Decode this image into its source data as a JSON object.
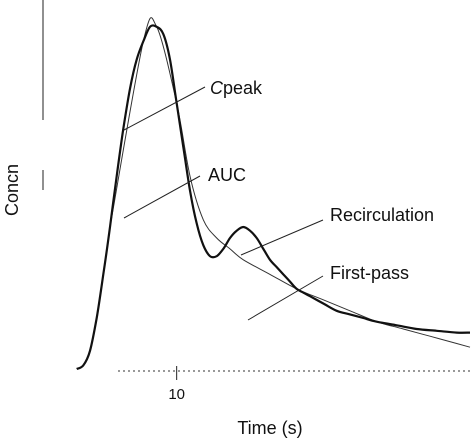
{
  "chart_data": {
    "type": "line",
    "title": "",
    "xlabel": "Time (s)",
    "ylabel": "Concn",
    "x_ticks": [
      10
    ],
    "x_tick_labels": [
      "10"
    ],
    "xlim": [
      -6,
      54
    ],
    "ylim": [
      0,
      100
    ],
    "grid": false,
    "series": [
      {
        "key": "total",
        "x": [
          -5,
          -4,
          -3,
          -2,
          -1,
          0,
          1,
          2,
          3,
          4,
          5,
          6,
          7,
          8,
          9,
          10,
          11,
          12,
          13,
          14,
          15,
          16,
          17,
          18,
          19,
          20,
          21,
          22,
          23,
          24,
          25,
          26,
          27,
          28,
          29,
          30,
          32,
          34,
          36,
          38,
          40,
          43,
          46,
          49,
          52,
          54
        ],
        "values": [
          0,
          1,
          5,
          14,
          26,
          39,
          53,
          66,
          77,
          85,
          90,
          94,
          94,
          92,
          85,
          73,
          61,
          49,
          40,
          34,
          31,
          31,
          33,
          36,
          38,
          39,
          38,
          36,
          33,
          30,
          28,
          26,
          24,
          22,
          21,
          20,
          18,
          16,
          15,
          14,
          13,
          12,
          11,
          10.5,
          10,
          10
        ],
        "stroke": "#111111"
      },
      {
        "key": "first_pass",
        "x": [
          0,
          5,
          7,
          10,
          12,
          14,
          16,
          18,
          20,
          24,
          28,
          32,
          36,
          40,
          44,
          48,
          52,
          54
        ],
        "values": [
          39,
          90,
          94,
          73,
          53,
          41,
          36,
          33,
          30,
          26,
          22,
          19,
          16,
          13,
          11,
          9,
          7,
          6
        ],
        "stroke": "#333333"
      }
    ],
    "annotations": [
      {
        "key": "cpeak",
        "text_italic": "C",
        "text": "peak",
        "at_x": 7,
        "at_y": 94
      },
      {
        "key": "auc",
        "text": "AUC",
        "at_x": 10,
        "at_y": 55
      },
      {
        "key": "recirc",
        "text": "Recirculation",
        "at_x": 24,
        "at_y": 36
      },
      {
        "key": "firstpass",
        "text": "First-pass",
        "at_x": 26,
        "at_y": 23
      }
    ]
  }
}
